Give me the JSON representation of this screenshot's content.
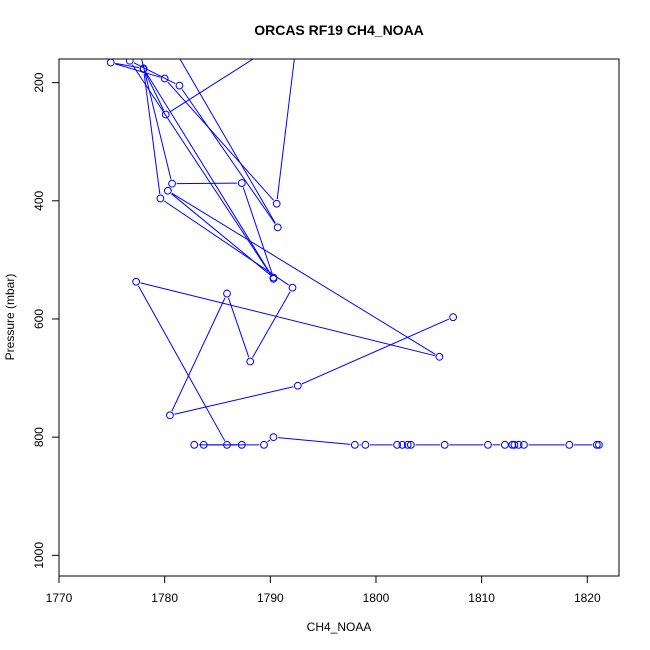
{
  "chart_data": {
    "type": "line",
    "title": "ORCAS RF19 CH4_NOAA",
    "xlabel": "CH4_NOAA",
    "ylabel": "Pressure (mbar)",
    "xlim": [
      1770,
      1823
    ],
    "ylim": [
      1035,
      160
    ],
    "y_reversed": true,
    "x_ticks": [
      1770,
      1780,
      1790,
      1800,
      1810,
      1820
    ],
    "y_ticks": [
      200,
      400,
      600,
      800,
      1000
    ],
    "series_color": "#0000ff",
    "markers": "open-circle",
    "grid": false,
    "series": [
      {
        "x": [
          1807.3,
          1792.6,
          1780.5,
          1785.9,
          1788.1,
          1792.1,
          1779.6,
          1778.0,
          1780.1,
          1792.6,
          1790.6,
          1780.0,
          1774.9,
          1778.0,
          1790.3,
          1776.7,
          1781.4,
          1790.7,
          1779.5,
          1777.0,
          1780.7,
          1787.3,
          1790.3,
          1780.3,
          1806.0,
          1777.3,
          1785.9,
          1787.3,
          1782.8,
          1783.7,
          1789.4,
          1790.3,
          1798.0,
          1799.0,
          1802.0,
          1802.5,
          1803.0,
          1803.3,
          1806.5,
          1810.6,
          1812.2,
          1812.9,
          1813.1,
          1813.5,
          1814.0,
          1818.3,
          1820.9,
          1821.1
        ],
        "y": [
          597,
          713,
          763,
          557,
          672,
          547,
          396,
          177,
          254,
          112,
          405,
          193,
          166,
          176,
          532,
          163,
          205,
          445,
          100,
          100,
          371,
          370,
          530,
          383,
          664,
          537,
          813,
          813,
          813,
          813,
          813,
          800,
          813,
          813,
          813,
          813,
          813,
          813,
          813,
          813,
          813,
          813,
          813,
          813,
          813,
          813,
          813,
          813
        ]
      }
    ]
  }
}
